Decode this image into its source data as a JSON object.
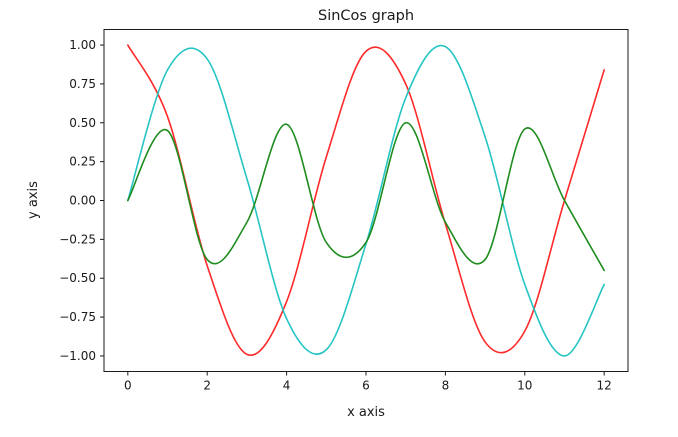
{
  "chart_data": {
    "type": "line",
    "title": "SinCos graph",
    "xlabel": "x axis",
    "ylabel": "y axis",
    "xlim": [
      -0.6,
      12.6
    ],
    "ylim": [
      -1.1,
      1.1
    ],
    "xticks": [
      0,
      2,
      4,
      6,
      8,
      10,
      12
    ],
    "xtick_labels": [
      "0",
      "2",
      "4",
      "6",
      "8",
      "10",
      "12"
    ],
    "yticks": [
      -1.0,
      -0.75,
      -0.5,
      -0.25,
      0.0,
      0.25,
      0.5,
      0.75,
      1.0
    ],
    "ytick_labels": [
      "−1.00",
      "−0.75",
      "−0.50",
      "−0.25",
      "0.00",
      "0.25",
      "0.50",
      "0.75",
      "1.00"
    ],
    "grid": false,
    "series": [
      {
        "color": "#ff2a2a",
        "x": [
          0,
          1,
          2,
          3,
          4,
          5,
          6,
          7,
          8,
          9,
          10,
          11,
          12
        ],
        "y": [
          1.0,
          0.54,
          -0.42,
          -0.99,
          -0.65,
          0.28,
          0.96,
          0.75,
          -0.15,
          -0.91,
          -0.84,
          0.0,
          0.84
        ]
      },
      {
        "color": "#27c4c4",
        "x": [
          0,
          1,
          2,
          3,
          4,
          5,
          6,
          7,
          8,
          9,
          10,
          11,
          12
        ],
        "y": [
          0.0,
          0.84,
          0.91,
          0.14,
          -0.76,
          -0.96,
          -0.28,
          0.66,
          0.99,
          0.41,
          -0.54,
          -1.0,
          -0.54
        ]
      },
      {
        "color": "#1e8c1e",
        "x": [
          0,
          1,
          2,
          3,
          4,
          5,
          6,
          7,
          8,
          9,
          10,
          11,
          12
        ],
        "y": [
          0.0,
          0.45,
          -0.38,
          -0.14,
          0.49,
          -0.27,
          -0.27,
          0.5,
          -0.14,
          -0.38,
          0.46,
          0.0,
          -0.45
        ]
      }
    ]
  }
}
